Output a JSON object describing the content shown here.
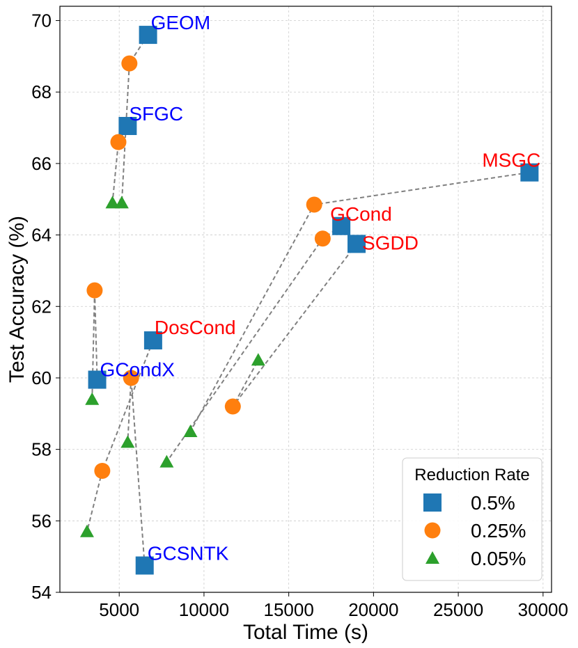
{
  "chart_data": {
    "type": "scatter",
    "xlabel": "Total Time (s)",
    "ylabel": "Test Accuracy (%)",
    "xlim": [
      1500,
      30500
    ],
    "ylim": [
      54,
      70.4
    ],
    "xticks": [
      5000,
      10000,
      15000,
      20000,
      25000,
      30000
    ],
    "yticks": [
      54,
      56,
      58,
      60,
      62,
      64,
      66,
      68,
      70
    ],
    "grid": true,
    "legend": {
      "title": "Reduction Rate",
      "position": "bottom-right",
      "entries": [
        {
          "label": "0.5%",
          "marker": "square",
          "color": "#1f77b4"
        },
        {
          "label": "0.25%",
          "marker": "circle",
          "color": "#ff7f0e"
        },
        {
          "label": "0.05%",
          "marker": "triangle",
          "color": "#2ca02c"
        }
      ]
    },
    "methods": [
      {
        "name": "GEOM",
        "label_color": "#0000ff",
        "points": {
          "0.5%": [
            6700,
            69.6
          ],
          "0.25%": [
            5600,
            68.8
          ],
          "0.05%": [
            5150,
            64.9
          ]
        }
      },
      {
        "name": "SFGC",
        "label_color": "#0000ff",
        "points": {
          "0.5%": [
            5500,
            67.05
          ],
          "0.25%": [
            4950,
            66.6
          ],
          "0.05%": [
            4600,
            64.9
          ]
        }
      },
      {
        "name": "MSGC",
        "label_color": "#ff0000",
        "points": {
          "0.5%": [
            29200,
            65.75
          ],
          "0.25%": [
            16500,
            64.85
          ],
          "0.05%": [
            9200,
            58.5
          ]
        }
      },
      {
        "name": "GCond",
        "label_color": "#ff0000",
        "points": {
          "0.5%": [
            18100,
            64.25
          ],
          "0.25%": [
            17000,
            63.9
          ],
          "0.05%": [
            7800,
            57.65
          ]
        }
      },
      {
        "name": "SGDD",
        "label_color": "#ff0000",
        "points": {
          "0.5%": [
            19000,
            63.75
          ],
          "0.25%": [
            11700,
            59.2
          ],
          "0.05%": [
            13200,
            60.5
          ]
        }
      },
      {
        "name": "DosCond",
        "label_color": "#ff0000",
        "points": {
          "0.5%": [
            7000,
            61.05
          ],
          "0.25%": [
            4000,
            57.4
          ],
          "0.05%": [
            3100,
            55.7
          ]
        }
      },
      {
        "name": "GCondX",
        "label_color": "#0000ff",
        "points": {
          "0.5%": [
            3700,
            59.95
          ],
          "0.25%": [
            3550,
            62.45
          ],
          "0.05%": [
            3400,
            59.4
          ]
        }
      },
      {
        "name": "GCSNTK",
        "label_color": "#0000ff",
        "points": {
          "0.5%": [
            6500,
            54.75
          ],
          "0.25%": [
            5700,
            60.0
          ],
          "0.05%": [
            5500,
            58.2
          ]
        }
      }
    ]
  }
}
